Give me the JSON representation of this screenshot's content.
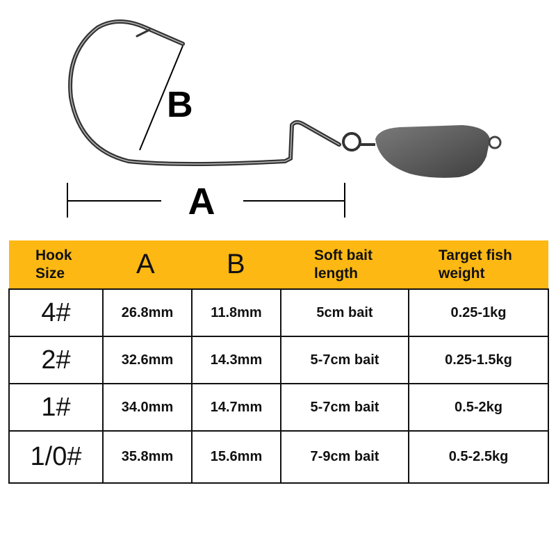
{
  "diagram": {
    "label_a": "A",
    "label_b": "B"
  },
  "table": {
    "headers": [
      "Hook Size",
      "A",
      "B",
      "Soft bait length",
      "Target fish weight"
    ],
    "header_lines": [
      [
        "Hook",
        "Size"
      ],
      [
        "A"
      ],
      [
        "B"
      ],
      [
        "Soft bait",
        "length"
      ],
      [
        "Target fish",
        "weight"
      ]
    ],
    "rows": [
      [
        "4#",
        "26.8mm",
        "11.8mm",
        "5cm bait",
        "0.25-1kg"
      ],
      [
        "2#",
        "32.6mm",
        "14.3mm",
        "5-7cm bait",
        "0.25-1.5kg"
      ],
      [
        "1#",
        "34.0mm",
        "14.7mm",
        "5-7cm bait",
        "0.5-2kg"
      ],
      [
        "1/0#",
        "35.8mm",
        "15.6mm",
        "7-9cm bait",
        "0.5-2.5kg"
      ]
    ]
  },
  "colors": {
    "header_bg": "#FDB813",
    "border": "#111111"
  }
}
